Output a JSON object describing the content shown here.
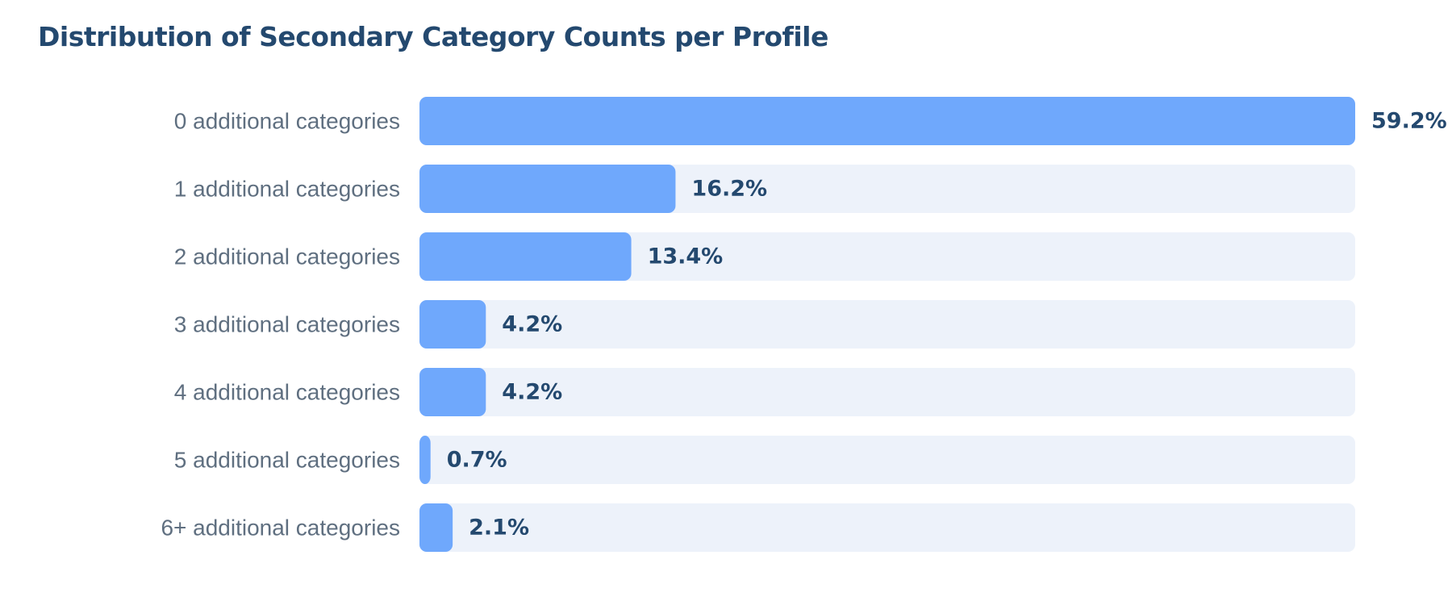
{
  "title": "Distribution of Secondary Category Counts per Profile",
  "colors": {
    "bar": "#6fa8fc",
    "track": "#edf2fa",
    "title": "#24496f",
    "category_label": "#5f6f80",
    "value_label": "#24496f"
  },
  "chart_data": {
    "type": "bar",
    "orientation": "horizontal",
    "title": "Distribution of Secondary Category Counts per Profile",
    "categories": [
      "0 additional categories",
      "1 additional categories",
      "2 additional categories",
      "3 additional categories",
      "4 additional categories",
      "5 additional categories",
      "6+ additional categories"
    ],
    "values": [
      59.2,
      16.2,
      13.4,
      4.2,
      4.2,
      0.7,
      2.1
    ],
    "value_labels": [
      "59.2%",
      "16.2%",
      "13.4%",
      "4.2%",
      "4.2%",
      "0.7%",
      "2.1%"
    ],
    "unit": "%",
    "xlim": [
      0,
      59.2
    ],
    "grid": false,
    "legend": "none"
  }
}
